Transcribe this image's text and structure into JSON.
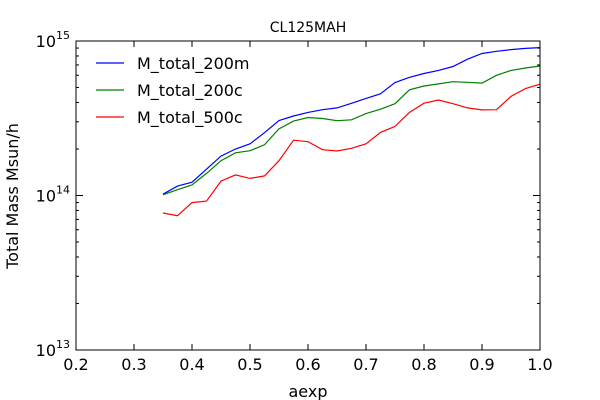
{
  "chart_data": {
    "type": "line",
    "title": "CL125MAH",
    "xlabel": "aexp",
    "ylabel": "Total Mass Msun/h",
    "xlim": [
      0.2,
      1.0
    ],
    "ylim": [
      10000000000000.0,
      1000000000000000.0
    ],
    "yscale": "log",
    "xticks": [
      "0.2",
      "0.3",
      "0.4",
      "0.5",
      "0.6",
      "0.7",
      "0.8",
      "0.9",
      "1.0"
    ],
    "yticks": [
      {
        "base": "10",
        "exp": "13"
      },
      {
        "base": "10",
        "exp": "14"
      },
      {
        "base": "10",
        "exp": "15"
      }
    ],
    "legend_position": "top-left",
    "grid": false,
    "x": [
      0.35,
      0.375,
      0.4,
      0.425,
      0.45,
      0.475,
      0.5,
      0.525,
      0.55,
      0.575,
      0.6,
      0.625,
      0.65,
      0.675,
      0.7,
      0.725,
      0.75,
      0.775,
      0.8,
      0.825,
      0.85,
      0.875,
      0.9,
      0.925,
      0.95,
      0.975,
      1.0
    ],
    "series": [
      {
        "name": "M_total_200m",
        "color": "#0000ff",
        "values": [
          102000000000000.0,
          115000000000000.0,
          122000000000000.0,
          148000000000000.0,
          180000000000000.0,
          200000000000000.0,
          216000000000000.0,
          255000000000000.0,
          306000000000000.0,
          327000000000000.0,
          345000000000000.0,
          359000000000000.0,
          369000000000000.0,
          395000000000000.0,
          425000000000000.0,
          455000000000000.0,
          539000000000000.0,
          582000000000000.0,
          616000000000000.0,
          645000000000000.0,
          684000000000000.0,
          762000000000000.0,
          830000000000000.0,
          858000000000000.0,
          880000000000000.0,
          895000000000000.0,
          906000000000000.0
        ]
      },
      {
        "name": "M_total_200c",
        "color": "#008000",
        "values": [
          101000000000000.0,
          109000000000000.0,
          117000000000000.0,
          139000000000000.0,
          168000000000000.0,
          189000000000000.0,
          195000000000000.0,
          213000000000000.0,
          270000000000000.0,
          303000000000000.0,
          320000000000000.0,
          315000000000000.0,
          305000000000000.0,
          309000000000000.0,
          339000000000000.0,
          362000000000000.0,
          393000000000000.0,
          483000000000000.0,
          511000000000000.0,
          528000000000000.0,
          545000000000000.0,
          540000000000000.0,
          534000000000000.0,
          600000000000000.0,
          645000000000000.0,
          669000000000000.0,
          689000000000000.0
        ]
      },
      {
        "name": "M_total_500c",
        "color": "#ff0000",
        "values": [
          77000000000000.0,
          74000000000000.0,
          90000000000000.0,
          92000000000000.0,
          124000000000000.0,
          136000000000000.0,
          129000000000000.0,
          134000000000000.0,
          168000000000000.0,
          228000000000000.0,
          223000000000000.0,
          198000000000000.0,
          194000000000000.0,
          202000000000000.0,
          216000000000000.0,
          256000000000000.0,
          280000000000000.0,
          345000000000000.0,
          396000000000000.0,
          415000000000000.0,
          393000000000000.0,
          369000000000000.0,
          358000000000000.0,
          359000000000000.0,
          438000000000000.0,
          492000000000000.0,
          525000000000000.0
        ]
      }
    ]
  }
}
